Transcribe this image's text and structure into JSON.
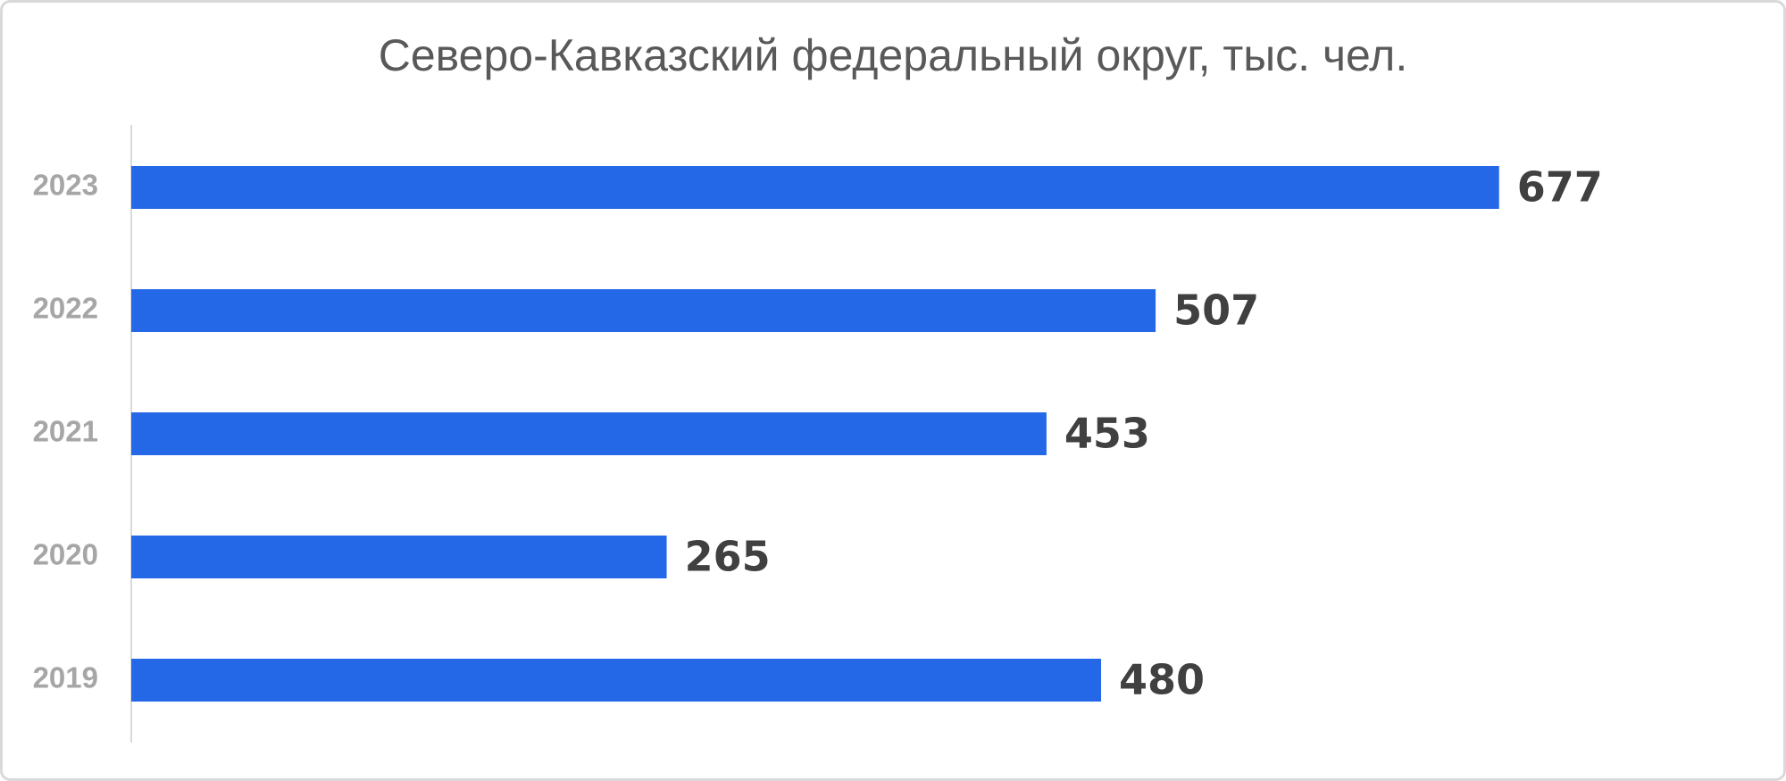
{
  "chart_data": {
    "type": "hbar",
    "title": "Северо-Кавказский федеральный округ, тыс. чел.",
    "categories": [
      "2023",
      "2022",
      "2021",
      "2020",
      "2019"
    ],
    "values": [
      677,
      507,
      453,
      265,
      480
    ],
    "color": "#2468e8",
    "xlim": [
      0,
      800
    ]
  }
}
